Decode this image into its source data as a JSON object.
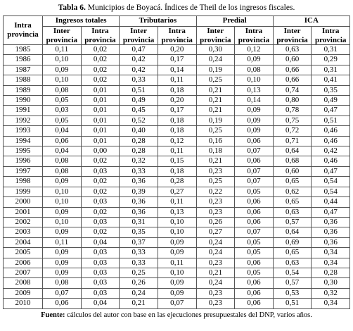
{
  "title": {
    "label": "Tabla 6.",
    "text": "Municipios de Boyacá. Índices de Theil de los ingresos fiscales."
  },
  "table": {
    "corner": "Intra provincia",
    "groups": [
      "Ingresos totales",
      "Tributarios",
      "Predial",
      "ICA"
    ],
    "columns": [
      "Inter provincia",
      "Intra provincia",
      "Inter provincia",
      "Intra provincia",
      "Inter provincia",
      "Intra provincia",
      "Inter provincia",
      "Intra provincia"
    ],
    "rows": [
      [
        "1985",
        "0,11",
        "0,02",
        "0,47",
        "0,20",
        "0,30",
        "0,12",
        "0,63",
        "0,31"
      ],
      [
        "1986",
        "0,10",
        "0,02",
        "0,42",
        "0,17",
        "0,24",
        "0,09",
        "0,60",
        "0,29"
      ],
      [
        "1987",
        "0,09",
        "0,02",
        "0,42",
        "0,14",
        "0,19",
        "0,08",
        "0,66",
        "0,31"
      ],
      [
        "1988",
        "0,10",
        "0,02",
        "0,33",
        "0,11",
        "0,25",
        "0,10",
        "0,66",
        "0,41"
      ],
      [
        "1989",
        "0,08",
        "0,01",
        "0,51",
        "0,18",
        "0,21",
        "0,13",
        "0,74",
        "0,35"
      ],
      [
        "1990",
        "0,05",
        "0,01",
        "0,49",
        "0,20",
        "0,21",
        "0,14",
        "0,80",
        "0,49"
      ],
      [
        "1991",
        "0,03",
        "0,01",
        "0,45",
        "0,17",
        "0,21",
        "0,09",
        "0,78",
        "0,47"
      ],
      [
        "1992",
        "0,05",
        "0,01",
        "0,52",
        "0,18",
        "0,19",
        "0,09",
        "0,75",
        "0,51"
      ],
      [
        "1993",
        "0,04",
        "0,01",
        "0,40",
        "0,18",
        "0,25",
        "0,09",
        "0,72",
        "0,46"
      ],
      [
        "1994",
        "0,06",
        "0,01",
        "0,28",
        "0,12",
        "0,16",
        "0,06",
        "0,71",
        "0,46"
      ],
      [
        "1995",
        "0,04",
        "0,00",
        "0,28",
        "0,11",
        "0,18",
        "0,07",
        "0,64",
        "0,42"
      ],
      [
        "1996",
        "0,08",
        "0,02",
        "0,32",
        "0,15",
        "0,21",
        "0,06",
        "0,68",
        "0,46"
      ],
      [
        "1997",
        "0,08",
        "0,03",
        "0,33",
        "0,18",
        "0,23",
        "0,07",
        "0,60",
        "0,47"
      ],
      [
        "1998",
        "0,09",
        "0,02",
        "0,36",
        "0,28",
        "0,25",
        "0,07",
        "0,65",
        "0,54"
      ],
      [
        "1999",
        "0,10",
        "0,02",
        "0,39",
        "0,27",
        "0,22",
        "0,05",
        "0,62",
        "0,54"
      ],
      [
        "2000",
        "0,10",
        "0,03",
        "0,36",
        "0,11",
        "0,23",
        "0,06",
        "0,65",
        "0,44"
      ],
      [
        "2001",
        "0,09",
        "0,02",
        "0,36",
        "0,13",
        "0,23",
        "0,06",
        "0,63",
        "0,47"
      ],
      [
        "2002",
        "0,10",
        "0,03",
        "0,31",
        "0,10",
        "0,26",
        "0,06",
        "0,57",
        "0,36"
      ],
      [
        "2003",
        "0,09",
        "0,02",
        "0,35",
        "0,10",
        "0,27",
        "0,07",
        "0,64",
        "0,36"
      ],
      [
        "2004",
        "0,11",
        "0,04",
        "0,37",
        "0,09",
        "0,24",
        "0,05",
        "0,69",
        "0,36"
      ],
      [
        "2005",
        "0,09",
        "0,03",
        "0,33",
        "0,09",
        "0,24",
        "0,05",
        "0,65",
        "0,34"
      ],
      [
        "2006",
        "0,09",
        "0,03",
        "0,33",
        "0,11",
        "0,23",
        "0,06",
        "0,63",
        "0,34"
      ],
      [
        "2007",
        "0,09",
        "0,03",
        "0,25",
        "0,10",
        "0,21",
        "0,05",
        "0,54",
        "0,28"
      ],
      [
        "2008",
        "0,08",
        "0,03",
        "0,26",
        "0,09",
        "0,24",
        "0,06",
        "0,57",
        "0,30"
      ],
      [
        "2009",
        "0,07",
        "0,03",
        "0,24",
        "0,09",
        "0,23",
        "0,06",
        "0,53",
        "0,32"
      ],
      [
        "2010",
        "0,06",
        "0,04",
        "0,21",
        "0,07",
        "0,23",
        "0,06",
        "0,51",
        "0,34"
      ]
    ]
  },
  "source": {
    "label": "Fuente:",
    "text": "cálculos del autor con base en las ejecuciones presupuestales del DNP, varios años."
  }
}
